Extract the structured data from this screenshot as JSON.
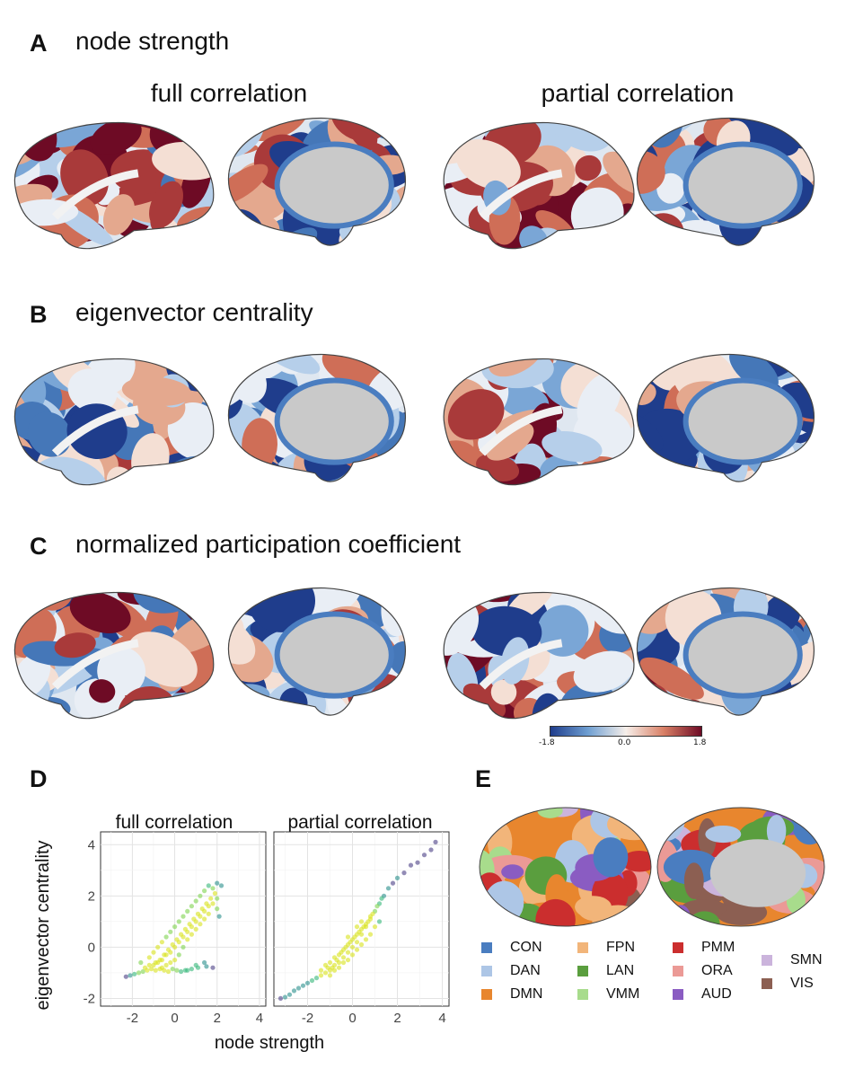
{
  "panels": {
    "A": {
      "letter": "A",
      "title": "node strength"
    },
    "B": {
      "letter": "B",
      "title": "eigenvector centrality"
    },
    "C": {
      "letter": "C",
      "title": "normalized participation coefficient"
    },
    "D": {
      "letter": "D"
    },
    "E": {
      "letter": "E"
    }
  },
  "columns": {
    "left": "full correlation",
    "right": "partial correlation"
  },
  "colorbar": {
    "min": "-1.8",
    "mid": "0.0",
    "max": "1.8",
    "colors": [
      "#1f3d8c",
      "#6f9fd2",
      "#f6efea",
      "#d98066",
      "#6e0b25"
    ]
  },
  "chart_data": {
    "type": "scatter",
    "xlabel": "node strength",
    "ylabel": "eigenvector centrality",
    "xlim": [
      -3.5,
      4.3
    ],
    "ylim": [
      -2.3,
      4.5
    ],
    "x_ticks": [
      "-2",
      "0",
      "2",
      "4"
    ],
    "y_ticks": [
      "-2",
      "0",
      "2",
      "4"
    ],
    "facets": [
      {
        "name": "full correlation",
        "points": [
          [
            -2.3,
            -1.15
          ],
          [
            -2.1,
            -1.1
          ],
          [
            -1.9,
            -1.05
          ],
          [
            -1.7,
            -1.0
          ],
          [
            -1.5,
            -0.95
          ],
          [
            -1.3,
            -0.9
          ],
          [
            -1.1,
            -0.85
          ],
          [
            -0.9,
            -0.9
          ],
          [
            -0.7,
            -0.85
          ],
          [
            -0.5,
            -0.9
          ],
          [
            -0.3,
            -0.95
          ],
          [
            -0.1,
            -0.85
          ],
          [
            0.1,
            -0.9
          ],
          [
            0.3,
            -0.95
          ],
          [
            0.5,
            -0.9
          ],
          [
            0.8,
            -0.85
          ],
          [
            1.1,
            -0.8
          ],
          [
            1.5,
            -0.75
          ],
          [
            1.8,
            -0.8
          ],
          [
            -1.6,
            -0.6
          ],
          [
            -1.2,
            -0.4
          ],
          [
            -1.0,
            -0.2
          ],
          [
            -0.8,
            0.0
          ],
          [
            -0.6,
            0.2
          ],
          [
            -0.4,
            0.4
          ],
          [
            -0.2,
            0.6
          ],
          [
            0.0,
            0.8
          ],
          [
            0.2,
            1.0
          ],
          [
            0.4,
            1.2
          ],
          [
            0.6,
            1.4
          ],
          [
            0.8,
            1.6
          ],
          [
            1.0,
            1.8
          ],
          [
            1.2,
            2.0
          ],
          [
            1.4,
            2.2
          ],
          [
            1.6,
            2.4
          ],
          [
            1.8,
            2.3
          ],
          [
            2.0,
            2.5
          ],
          [
            2.2,
            2.4
          ],
          [
            -0.6,
            -0.5
          ],
          [
            -0.4,
            -0.3
          ],
          [
            -0.2,
            -0.2
          ],
          [
            0.0,
            0.0
          ],
          [
            0.2,
            0.2
          ],
          [
            0.4,
            0.4
          ],
          [
            0.6,
            0.6
          ],
          [
            0.8,
            0.8
          ],
          [
            1.0,
            1.0
          ],
          [
            1.2,
            1.2
          ],
          [
            1.4,
            1.4
          ],
          [
            1.6,
            1.6
          ],
          [
            1.8,
            1.7
          ],
          [
            2.0,
            1.5
          ],
          [
            2.1,
            1.2
          ],
          [
            -1.0,
            -0.7
          ],
          [
            -0.8,
            -0.6
          ],
          [
            -0.6,
            -0.8
          ],
          [
            -0.4,
            -0.7
          ],
          [
            -0.2,
            -0.6
          ],
          [
            0.0,
            -0.5
          ],
          [
            0.2,
            -0.3
          ],
          [
            0.4,
            0.0
          ],
          [
            0.6,
            0.3
          ],
          [
            0.8,
            0.5
          ],
          [
            1.0,
            0.7
          ],
          [
            1.2,
            0.9
          ],
          [
            1.4,
            1.1
          ],
          [
            1.6,
            1.3
          ],
          [
            -1.4,
            -0.8
          ],
          [
            -1.2,
            -0.7
          ],
          [
            0.6,
            -0.9
          ],
          [
            1.0,
            -0.7
          ],
          [
            1.4,
            -0.6
          ],
          [
            2.0,
            1.9
          ],
          [
            1.9,
            2.1
          ],
          [
            1.7,
            1.9
          ],
          [
            1.5,
            1.7
          ],
          [
            1.3,
            1.5
          ],
          [
            1.1,
            1.3
          ],
          [
            0.9,
            1.1
          ],
          [
            0.7,
            0.9
          ],
          [
            0.5,
            0.7
          ],
          [
            0.3,
            0.5
          ],
          [
            0.1,
            0.3
          ],
          [
            -0.1,
            0.1
          ],
          [
            -0.3,
            -0.1
          ],
          [
            -0.5,
            -0.3
          ],
          [
            -0.7,
            -0.5
          ],
          [
            -0.9,
            -0.6
          ]
        ]
      },
      {
        "name": "partial correlation",
        "points": [
          [
            -3.2,
            -2.0
          ],
          [
            -3.0,
            -1.95
          ],
          [
            -2.8,
            -1.85
          ],
          [
            -2.6,
            -1.7
          ],
          [
            -2.4,
            -1.6
          ],
          [
            -2.2,
            -1.5
          ],
          [
            -2.0,
            -1.4
          ],
          [
            -1.8,
            -1.3
          ],
          [
            -1.6,
            -1.2
          ],
          [
            -1.4,
            -1.1
          ],
          [
            -1.2,
            -1.0
          ],
          [
            -1.0,
            -0.9
          ],
          [
            -0.8,
            -0.7
          ],
          [
            -0.6,
            -0.6
          ],
          [
            -0.4,
            -0.4
          ],
          [
            -0.2,
            -0.2
          ],
          [
            0.0,
            0.0
          ],
          [
            0.2,
            0.2
          ],
          [
            0.4,
            0.5
          ],
          [
            0.6,
            0.8
          ],
          [
            0.8,
            1.1
          ],
          [
            1.0,
            1.4
          ],
          [
            1.2,
            1.7
          ],
          [
            1.4,
            2.0
          ],
          [
            1.6,
            2.3
          ],
          [
            1.8,
            2.5
          ],
          [
            2.0,
            2.7
          ],
          [
            2.3,
            2.9
          ],
          [
            2.6,
            3.2
          ],
          [
            2.9,
            3.3
          ],
          [
            3.2,
            3.6
          ],
          [
            3.5,
            3.8
          ],
          [
            3.7,
            4.1
          ],
          [
            -1.2,
            -0.7
          ],
          [
            -1.0,
            -0.6
          ],
          [
            -0.8,
            -0.4
          ],
          [
            -0.6,
            -0.3
          ],
          [
            -0.4,
            -0.1
          ],
          [
            -0.2,
            0.1
          ],
          [
            0.0,
            0.3
          ],
          [
            0.2,
            0.5
          ],
          [
            0.4,
            0.7
          ],
          [
            0.6,
            0.9
          ],
          [
            0.8,
            1.2
          ],
          [
            -1.4,
            -0.9
          ],
          [
            -1.0,
            -1.1
          ],
          [
            -0.8,
            -0.9
          ],
          [
            -0.6,
            -0.8
          ],
          [
            -0.4,
            -0.6
          ],
          [
            -0.2,
            -0.5
          ],
          [
            0.0,
            -0.3
          ],
          [
            0.2,
            -0.1
          ],
          [
            0.4,
            0.1
          ],
          [
            0.6,
            0.3
          ],
          [
            0.8,
            0.5
          ],
          [
            1.0,
            0.8
          ],
          [
            1.2,
            1.0
          ],
          [
            -0.5,
            -0.2
          ],
          [
            -0.3,
            0.0
          ],
          [
            -0.1,
            0.2
          ],
          [
            0.1,
            0.4
          ],
          [
            0.3,
            0.6
          ],
          [
            0.5,
            0.8
          ],
          [
            0.7,
            1.0
          ],
          [
            0.9,
            1.3
          ],
          [
            -0.7,
            -0.5
          ],
          [
            -0.9,
            -0.8
          ],
          [
            -1.1,
            -0.8
          ],
          [
            1.1,
            1.6
          ],
          [
            1.3,
            1.9
          ],
          [
            0.2,
            0.8
          ],
          [
            0.4,
            1.0
          ],
          [
            -0.2,
            0.4
          ]
        ]
      }
    ]
  },
  "legend": {
    "items": [
      {
        "label": "CON",
        "color": "#4a7dc0"
      },
      {
        "label": "DAN",
        "color": "#adc6e6"
      },
      {
        "label": "DMN",
        "color": "#e8862e"
      },
      {
        "label": "FPN",
        "color": "#f2b57a"
      },
      {
        "label": "LAN",
        "color": "#5a9e3e"
      },
      {
        "label": "VMM",
        "color": "#a8dc8c"
      },
      {
        "label": "PMM",
        "color": "#cb2e2e"
      },
      {
        "label": "ORA",
        "color": "#eb9a96"
      },
      {
        "label": "AUD",
        "color": "#8a5cc2"
      },
      {
        "label": "SMN",
        "color": "#cbb4dc"
      },
      {
        "label": "VIS",
        "color": "#8c5f52"
      }
    ]
  },
  "icons": {
    "brain": "cortical-surface-icon"
  }
}
